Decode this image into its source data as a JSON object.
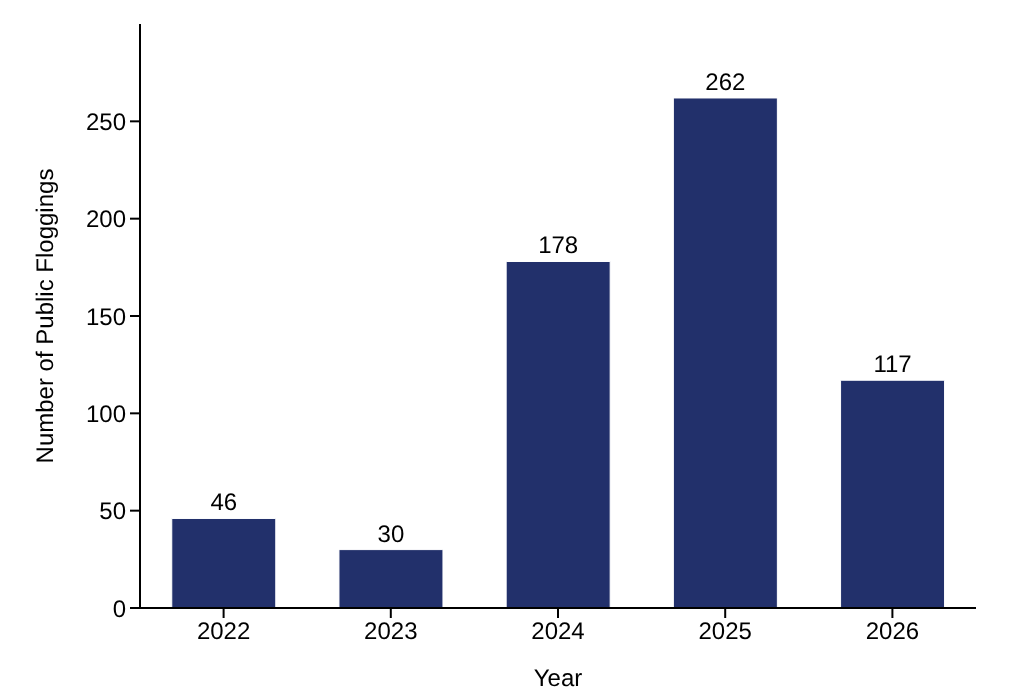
{
  "chart_data": {
    "type": "bar",
    "xlabel": "Year",
    "ylabel": "Number of Public Floggings",
    "categories": [
      "2022",
      "2023",
      "2024",
      "2025",
      "2026"
    ],
    "values": [
      46,
      30,
      178,
      262,
      117
    ],
    "color": "#22306b",
    "ylim": [
      0,
      300
    ],
    "yticks": [
      0,
      50,
      100,
      150,
      200,
      250
    ],
    "grid": false,
    "data_labels": true
  }
}
